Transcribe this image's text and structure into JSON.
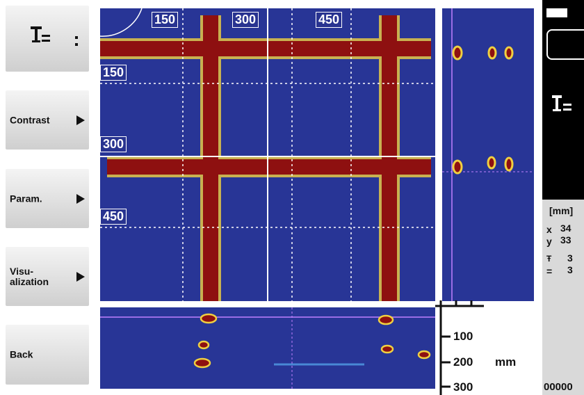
{
  "menu": {
    "buttons": [
      "Contrast",
      "Param.",
      "Visu-\nalization",
      "Back"
    ]
  },
  "top_view": {
    "x_labels": [
      "150",
      "300",
      "450"
    ],
    "y_labels": [
      "150",
      "300",
      "450"
    ]
  },
  "depth_view": {
    "scale_labels": [
      "100",
      "200",
      "300"
    ],
    "unit": "mm"
  },
  "info_panel": {
    "unit": "[mm]",
    "rows": [
      {
        "key": "x",
        "value": "34"
      },
      {
        "key": "y",
        "value": "33"
      }
    ],
    "cover": [
      "3",
      "3"
    ],
    "counter": "00000"
  }
}
